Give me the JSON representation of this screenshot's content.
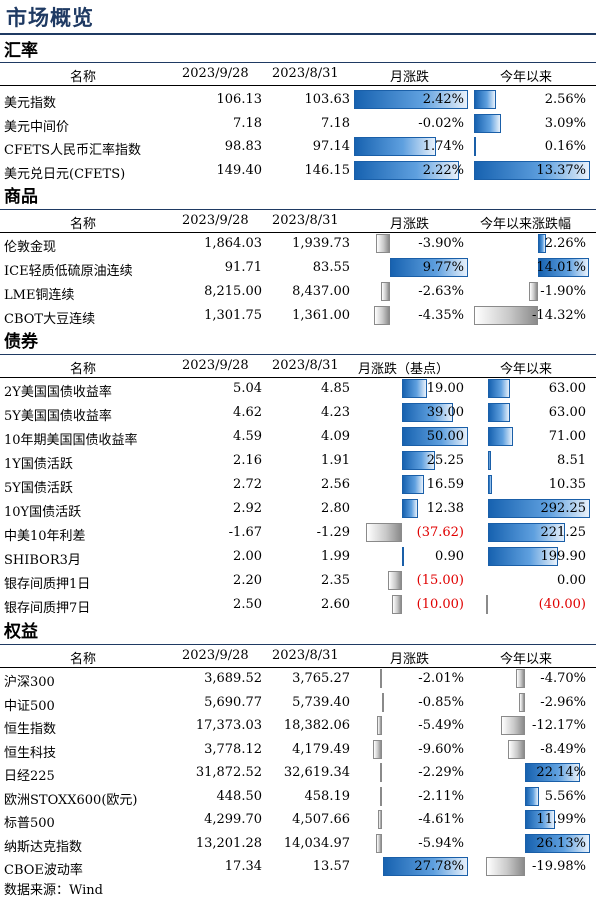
{
  "title": "市场概览",
  "source": "数据来源：Wind",
  "sections": [
    {
      "key": "fx",
      "title": "汇率",
      "headers": [
        "名称",
        "2023/9/28",
        "2023/8/31",
        "月涨跌",
        "今年以来"
      ],
      "rows": [
        {
          "name": "美元指数",
          "v1": "106.13",
          "v2": "103.63",
          "m": "2.42%",
          "mv": 2.42,
          "y": "2.56%",
          "yv": 2.56
        },
        {
          "name": "美元中间价",
          "v1": "7.18",
          "v2": "7.18",
          "m": "-0.02%",
          "mv": -0.02,
          "y": "3.09%",
          "yv": 3.09
        },
        {
          "name": "CFETS人民币汇率指数",
          "v1": "98.83",
          "v2": "97.14",
          "m": "1.74%",
          "mv": 1.74,
          "y": "0.16%",
          "yv": 0.16
        },
        {
          "name": "美元兑日元(CFETS)",
          "v1": "149.40",
          "v2": "146.15",
          "m": "2.22%",
          "mv": 2.22,
          "y": "13.37%",
          "yv": 13.37
        }
      ]
    },
    {
      "key": "commodity",
      "title": "商品",
      "headers": [
        "名称",
        "2023/9/28",
        "2023/8/31",
        "月涨跌",
        "今年以来涨跌幅"
      ],
      "rows": [
        {
          "name": "伦敦金现",
          "v1": "1,864.03",
          "v2": "1,939.73",
          "m": "-3.90%",
          "mv": -3.9,
          "y": "2.26%",
          "yv": 2.26
        },
        {
          "name": "ICE轻质低硫原油连续",
          "v1": "91.71",
          "v2": "83.55",
          "m": "9.77%",
          "mv": 9.77,
          "y": "14.01%",
          "yv": 14.01
        },
        {
          "name": "LME铜连续",
          "v1": "8,215.00",
          "v2": "8,437.00",
          "m": "-2.63%",
          "mv": -2.63,
          "y": "-1.90%",
          "yv": -1.9
        },
        {
          "name": "CBOT大豆连续",
          "v1": "1,301.75",
          "v2": "1,361.00",
          "m": "-4.35%",
          "mv": -4.35,
          "y": "-14.32%",
          "yv": -14.32
        }
      ]
    },
    {
      "key": "bond",
      "title": "债券",
      "headers": [
        "名称",
        "2023/9/28",
        "2023/8/31",
        "月涨跌（基点）",
        "今年以来"
      ],
      "rows": [
        {
          "name": "2Y美国国债收益率",
          "v1": "5.04",
          "v2": "4.85",
          "m": "19.00",
          "mv": 19.0,
          "y": "63.00",
          "yv": 63.0
        },
        {
          "name": "5Y美国国债收益率",
          "v1": "4.62",
          "v2": "4.23",
          "m": "39.00",
          "mv": 39.0,
          "y": "63.00",
          "yv": 63.0
        },
        {
          "name": "10年期美国国债收益率",
          "v1": "4.59",
          "v2": "4.09",
          "m": "50.00",
          "mv": 50.0,
          "y": "71.00",
          "yv": 71.0
        },
        {
          "name": "1Y国债活跃",
          "v1": "2.16",
          "v2": "1.91",
          "m": "25.25",
          "mv": 25.25,
          "y": "8.51",
          "yv": 8.51
        },
        {
          "name": "5Y国债活跃",
          "v1": "2.72",
          "v2": "2.56",
          "m": "16.59",
          "mv": 16.59,
          "y": "10.35",
          "yv": 10.35
        },
        {
          "name": "10Y国债活跃",
          "v1": "2.92",
          "v2": "2.80",
          "m": "12.38",
          "mv": 12.38,
          "y": "292.25",
          "yv": 292.25
        },
        {
          "name": "中美10年利差",
          "v1": "-1.67",
          "v2": "-1.29",
          "m": "(37.62)",
          "mv": -37.62,
          "y": "221.25",
          "yv": 221.25
        },
        {
          "name": "SHIBOR3月",
          "v1": "2.00",
          "v2": "1.99",
          "m": "0.90",
          "mv": 0.9,
          "y": "199.90",
          "yv": 199.9
        },
        {
          "name": "银存间质押1日",
          "v1": "2.20",
          "v2": "2.35",
          "m": "(15.00)",
          "mv": -15.0,
          "y": "0.00",
          "yv": 0.0
        },
        {
          "name": "银存间质押7日",
          "v1": "2.50",
          "v2": "2.60",
          "m": "(10.00)",
          "mv": -10.0,
          "y": "(40.00)",
          "yv": -40.0
        }
      ]
    },
    {
      "key": "equity",
      "title": "权益",
      "headers": [
        "名称",
        "2023/9/28",
        "2023/8/31",
        "月涨跌",
        "今年以来"
      ],
      "rows": [
        {
          "name": "沪深300",
          "v1": "3,689.52",
          "v2": "3,765.27",
          "m": "-2.01%",
          "mv": -2.01,
          "y": "-4.70%",
          "yv": -4.7
        },
        {
          "name": "中证500",
          "v1": "5,690.77",
          "v2": "5,739.40",
          "m": "-0.85%",
          "mv": -0.85,
          "y": "-2.96%",
          "yv": -2.96
        },
        {
          "name": "恒生指数",
          "v1": "17,373.03",
          "v2": "18,382.06",
          "m": "-5.49%",
          "mv": -5.49,
          "y": "-12.17%",
          "yv": -12.17
        },
        {
          "name": "恒生科技",
          "v1": "3,778.12",
          "v2": "4,179.49",
          "m": "-9.60%",
          "mv": -9.6,
          "y": "-8.49%",
          "yv": -8.49
        },
        {
          "name": "日经225",
          "v1": "31,872.52",
          "v2": "32,619.34",
          "m": "-2.29%",
          "mv": -2.29,
          "y": "22.14%",
          "yv": 22.14
        },
        {
          "name": "欧洲STOXX600(欧元)",
          "v1": "448.50",
          "v2": "458.19",
          "m": "-2.11%",
          "mv": -2.11,
          "y": "5.56%",
          "yv": 5.56
        },
        {
          "name": "标普500",
          "v1": "4,299.70",
          "v2": "4,507.66",
          "m": "-4.61%",
          "mv": -4.61,
          "y": "11.99%",
          "yv": 11.99
        },
        {
          "name": "纳斯达克指数",
          "v1": "13,201.28",
          "v2": "14,034.97",
          "m": "-5.94%",
          "mv": -5.94,
          "y": "26.13%",
          "yv": 26.13
        },
        {
          "name": "CBOE波动率",
          "v1": "17.34",
          "v2": "13.57",
          "m": "27.78%",
          "mv": 27.78,
          "y": "-19.98%",
          "yv": -19.98
        }
      ]
    }
  ]
}
